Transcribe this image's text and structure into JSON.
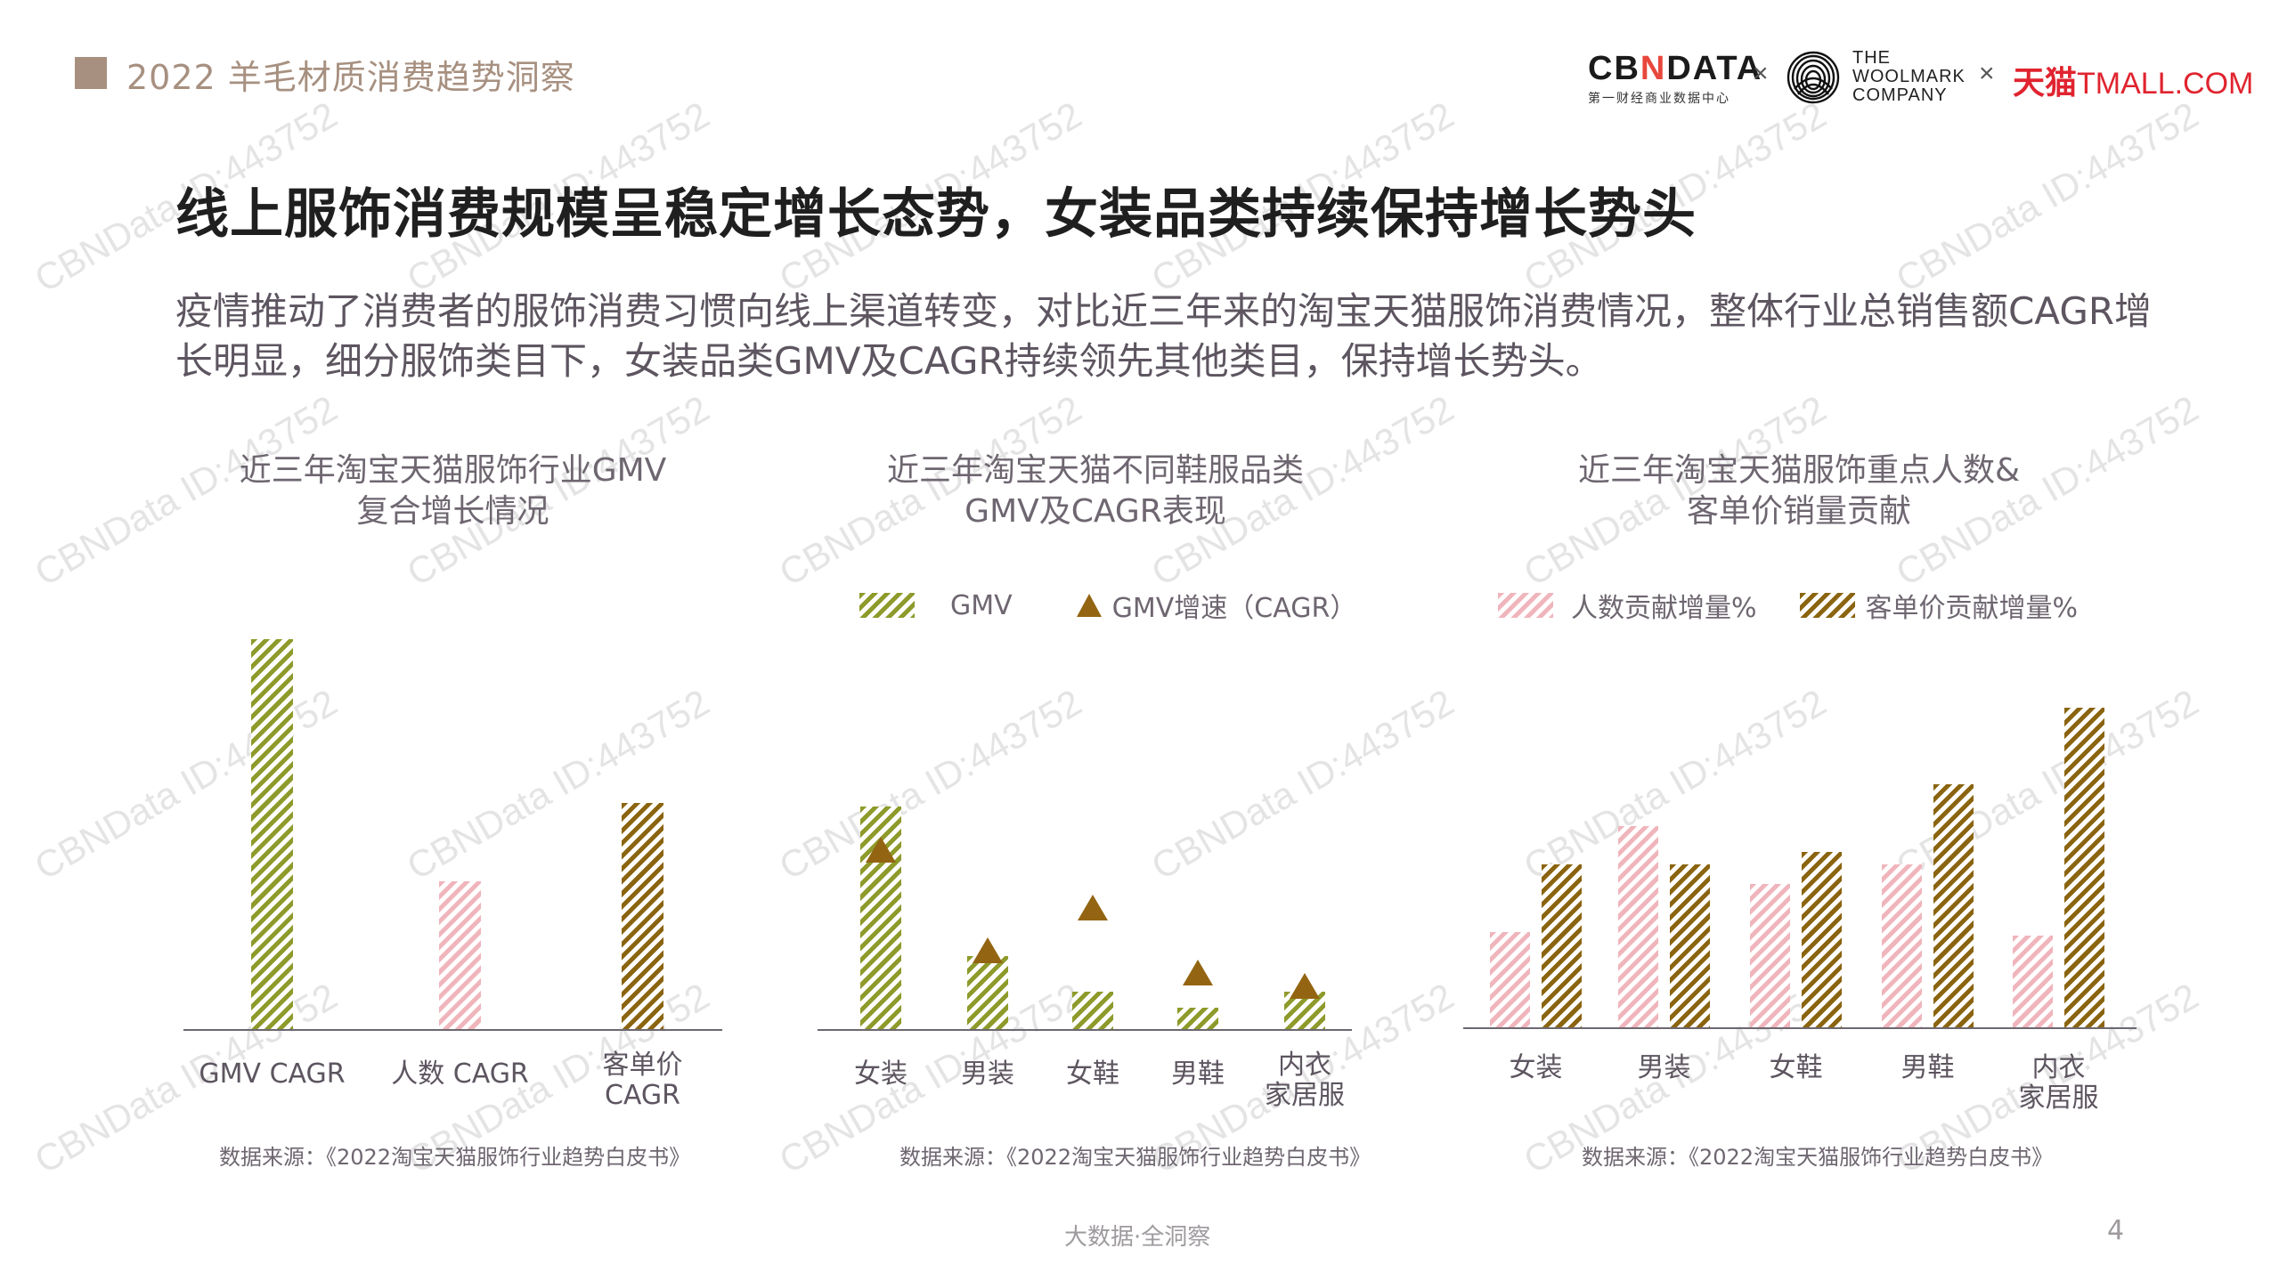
{
  "header": {
    "section_title": "2022 羊毛材质消费趋势洞察",
    "logos": {
      "cbndata": {
        "wordmark_left": "CB",
        "wordmark_n": "N",
        "wordmark_right": "DATA",
        "subtitle": "第一财经商业数据中心"
      },
      "separator": "×",
      "woolmark": {
        "line1": "THE",
        "line2": "WOOLMARK",
        "line3": "COMPANY",
        "icon": "woolmark-icon"
      },
      "tmall": {
        "cn": "天猫",
        "en": "TMALL.COM"
      }
    },
    "accent_color": "#a79080"
  },
  "main": {
    "title": "线上服饰消费规模呈稳定增长态势，女装品类持续保持增长势头",
    "intro": "疫情推动了消费者的服饰消费习惯向线上渠道转变，对比近三年来的淘宝天猫服饰消费情况，整体行业总销售额CAGR增长明显，细分服饰类目下，女装品类GMV及CAGR持续领先其他类目，保持增长势头。"
  },
  "charts": [
    {
      "title_line1": "近三年淘宝天猫服饰行业GMV",
      "title_line2": "复合增长情况",
      "source": "数据来源：《2022淘宝天猫服饰行业趋势白皮书》"
    },
    {
      "title_line1": "近三年淘宝天猫不同鞋服品类",
      "title_line2": "GMV及CAGR表现",
      "legend": [
        {
          "label": "GMV",
          "swatch": "hatch-green"
        },
        {
          "label": "GMV增速（CAGR）",
          "swatch": "triangle"
        }
      ],
      "source": "数据来源：《2022淘宝天猫服饰行业趋势白皮书》"
    },
    {
      "title_line1": "近三年淘宝天猫服饰重点人数&",
      "title_line2": "客单价销量贡献",
      "legend": [
        {
          "label": "人数贡献增量%",
          "swatch": "hatch-pink"
        },
        {
          "label": "客单价贡献增量%",
          "swatch": "hatch-brown"
        }
      ],
      "source": "数据来源：《2022淘宝天猫服饰行业趋势白皮书》"
    }
  ],
  "chart_data": [
    {
      "type": "bar",
      "title": "近三年淘宝天猫服饰行业GMV复合增长情况",
      "categories": [
        "GMV CAGR",
        "人数 CAGR",
        "客单价\nCAGR"
      ],
      "values": [
        100,
        38,
        58
      ],
      "colors": [
        "#8e9a2a",
        "#f0b5bc",
        "#8b6410"
      ],
      "value_note": "relative bar heights (no axis shown), tallest = 100",
      "xlabel": "",
      "ylabel": "",
      "grid": false
    },
    {
      "type": "bar",
      "title": "近三年淘宝天猫不同鞋服品类GMV及CAGR表现",
      "categories": [
        "女装",
        "男装",
        "女鞋",
        "男鞋",
        "内衣\n家居服"
      ],
      "series": [
        {
          "name": "GMV",
          "kind": "bar",
          "color": "#8e9a2a",
          "values": [
            100,
            33,
            17,
            10,
            17
          ]
        },
        {
          "name": "GMV增速（CAGR）",
          "kind": "marker-triangle",
          "color": "#936512",
          "values": [
            81,
            36,
            55,
            26,
            20
          ]
        }
      ],
      "value_note": "relative heights (no axis shown), tallest GMV bar = 100",
      "legend_position": "top",
      "grid": false
    },
    {
      "type": "bar",
      "title": "近三年淘宝天猫服饰重点人数&客单价销量贡献",
      "categories": [
        "女装",
        "男装",
        "女鞋",
        "男鞋",
        "内衣\n家居服"
      ],
      "series": [
        {
          "name": "人数贡献增量%",
          "color": "#f0b5bc",
          "values": [
            30,
            63,
            45,
            51,
            29
          ]
        },
        {
          "name": "客单价贡献增量%",
          "color": "#8b6410",
          "values": [
            51,
            51,
            55,
            76,
            100
          ]
        }
      ],
      "value_note": "relative heights (no axis shown), tallest bar = 100",
      "legend_position": "top",
      "grid": false
    }
  ],
  "footer": {
    "slogan": "大数据·全洞察",
    "page_number": "4"
  },
  "watermark": {
    "text": "CBNData ID:443752"
  }
}
